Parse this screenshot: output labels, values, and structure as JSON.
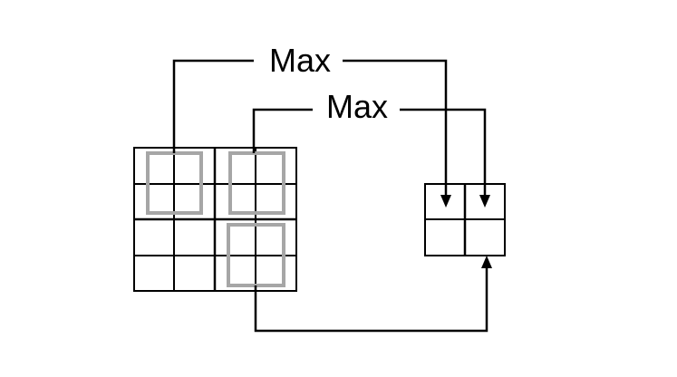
{
  "labels": {
    "top": "Max",
    "middle": "Max"
  },
  "colors": {
    "background": "#ffffff",
    "line": "#000000",
    "window": "#a6a6a6"
  }
}
